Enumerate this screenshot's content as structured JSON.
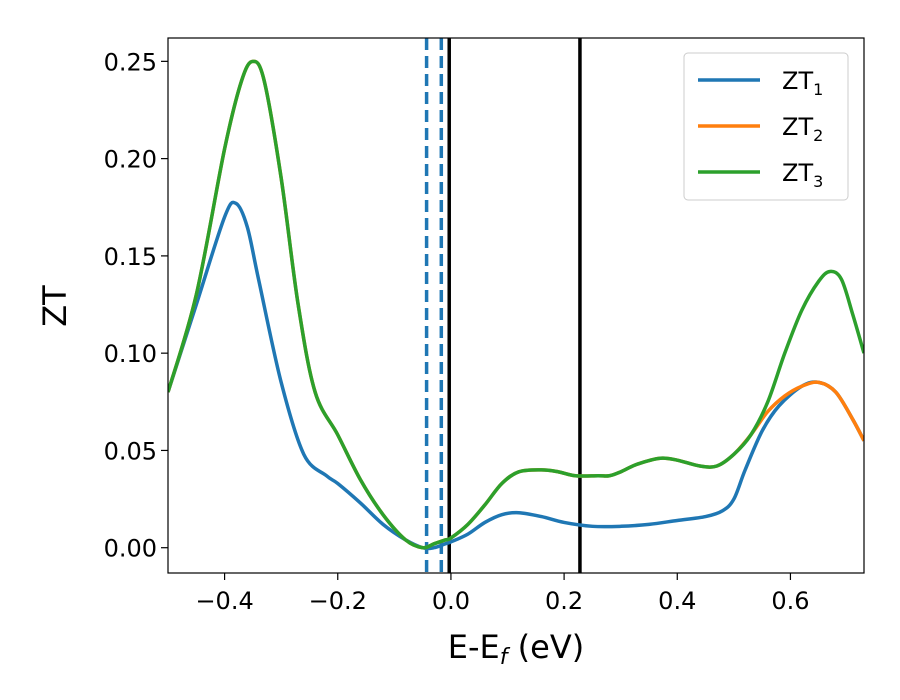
{
  "chart_data": {
    "type": "line",
    "title": "",
    "xlabel_main": "E-E",
    "xlabel_sub": "f",
    "xlabel_unit": " (eV)",
    "ylabel": "ZT",
    "xlim": [
      -0.5,
      0.73
    ],
    "ylim": [
      -0.013,
      0.262
    ],
    "x_ticks": [
      -0.4,
      -0.2,
      0.0,
      0.2,
      0.4,
      0.6
    ],
    "x_tick_labels": [
      "−0.4",
      "−0.2",
      "0.0",
      "0.2",
      "0.4",
      "0.6"
    ],
    "y_ticks": [
      0.0,
      0.05,
      0.1,
      0.15,
      0.2,
      0.25
    ],
    "y_tick_labels": [
      "0.00",
      "0.05",
      "0.10",
      "0.15",
      "0.20",
      "0.25"
    ],
    "grid": false,
    "legend_position": "top-right",
    "series": [
      {
        "name": "ZT",
        "subscript": "1",
        "color": "#1f77b4",
        "x": [
          -0.5,
          -0.45,
          -0.4,
          -0.38,
          -0.36,
          -0.34,
          -0.3,
          -0.26,
          -0.22,
          -0.2,
          -0.16,
          -0.12,
          -0.08,
          -0.05,
          -0.03,
          -0.01,
          0.0,
          0.03,
          0.06,
          0.09,
          0.12,
          0.16,
          0.2,
          0.25,
          0.3,
          0.35,
          0.4,
          0.45,
          0.48,
          0.5,
          0.52,
          0.55,
          0.58,
          0.62,
          0.65,
          0.68,
          0.71,
          0.73
        ],
        "y": [
          0.08,
          0.125,
          0.17,
          0.177,
          0.165,
          0.138,
          0.085,
          0.048,
          0.037,
          0.033,
          0.023,
          0.012,
          0.004,
          0.0,
          0.0,
          0.002,
          0.003,
          0.007,
          0.013,
          0.017,
          0.018,
          0.016,
          0.013,
          0.011,
          0.011,
          0.012,
          0.014,
          0.016,
          0.019,
          0.025,
          0.04,
          0.06,
          0.073,
          0.083,
          0.085,
          0.08,
          0.066,
          0.055
        ]
      },
      {
        "name": "ZT",
        "subscript": "2",
        "color": "#ff7f0e",
        "x": [
          -0.5,
          -0.45,
          -0.4,
          -0.37,
          -0.35,
          -0.33,
          -0.3,
          -0.27,
          -0.24,
          -0.2,
          -0.16,
          -0.12,
          -0.08,
          -0.05,
          -0.03,
          -0.01,
          0.0,
          0.03,
          0.06,
          0.09,
          0.12,
          0.16,
          0.19,
          0.22,
          0.26,
          0.28,
          0.3,
          0.33,
          0.37,
          0.4,
          0.44,
          0.47,
          0.5,
          0.53,
          0.56,
          0.59,
          0.62,
          0.65,
          0.68,
          0.71,
          0.73
        ],
        "y": [
          0.08,
          0.13,
          0.205,
          0.24,
          0.25,
          0.24,
          0.19,
          0.125,
          0.08,
          0.058,
          0.035,
          0.017,
          0.004,
          0.0,
          0.002,
          0.004,
          0.005,
          0.012,
          0.022,
          0.033,
          0.039,
          0.04,
          0.039,
          0.037,
          0.037,
          0.037,
          0.039,
          0.043,
          0.046,
          0.045,
          0.042,
          0.042,
          0.048,
          0.058,
          0.07,
          0.078,
          0.083,
          0.085,
          0.08,
          0.066,
          0.055
        ]
      },
      {
        "name": "ZT",
        "subscript": "3",
        "color": "#2ca02c",
        "x": [
          -0.5,
          -0.45,
          -0.4,
          -0.37,
          -0.35,
          -0.33,
          -0.3,
          -0.27,
          -0.24,
          -0.2,
          -0.16,
          -0.12,
          -0.08,
          -0.05,
          -0.03,
          -0.01,
          0.0,
          0.03,
          0.06,
          0.09,
          0.12,
          0.16,
          0.19,
          0.22,
          0.26,
          0.28,
          0.3,
          0.33,
          0.37,
          0.4,
          0.44,
          0.47,
          0.5,
          0.53,
          0.56,
          0.59,
          0.62,
          0.65,
          0.67,
          0.69,
          0.71,
          0.73
        ],
        "y": [
          0.08,
          0.13,
          0.205,
          0.24,
          0.25,
          0.24,
          0.19,
          0.125,
          0.08,
          0.058,
          0.035,
          0.017,
          0.004,
          0.0,
          0.002,
          0.004,
          0.005,
          0.012,
          0.022,
          0.033,
          0.039,
          0.04,
          0.039,
          0.037,
          0.037,
          0.037,
          0.039,
          0.043,
          0.046,
          0.045,
          0.042,
          0.042,
          0.048,
          0.058,
          0.075,
          0.1,
          0.122,
          0.137,
          0.142,
          0.138,
          0.12,
          0.1
        ]
      }
    ],
    "vertical_lines": [
      {
        "x": -0.043,
        "color": "#1f77b4",
        "style": "dashed"
      },
      {
        "x": -0.017,
        "color": "#1f77b4",
        "style": "dashed"
      },
      {
        "x": -0.003,
        "color": "#000000",
        "style": "solid"
      },
      {
        "x": 0.228,
        "color": "#000000",
        "style": "solid"
      }
    ]
  }
}
